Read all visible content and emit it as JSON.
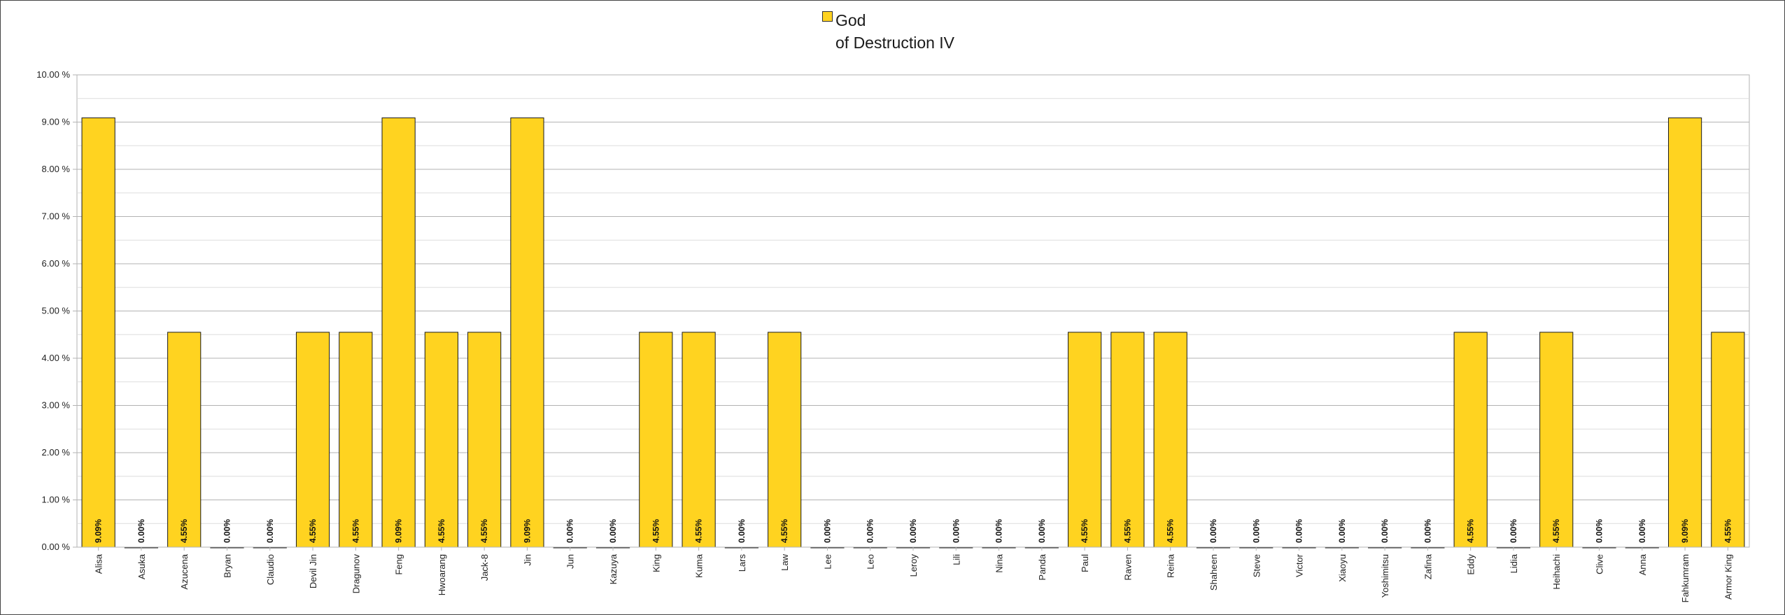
{
  "legend": {
    "series_label": "God\nof Destruction IV",
    "swatch_color": "#ffd320"
  },
  "chart_data": {
    "type": "bar",
    "title": "",
    "xlabel": "",
    "ylabel": "",
    "ylim": [
      0,
      10
    ],
    "y_ticks": [
      "0.00 %",
      "1.00 %",
      "2.00 %",
      "3.00 %",
      "4.00 %",
      "5.00 %",
      "6.00 %",
      "7.00 %",
      "8.00 %",
      "9.00 %",
      "10.00 %"
    ],
    "grid": true,
    "legend_position": "top-center",
    "bar_color": "#ffd320",
    "categories": [
      "Alisa",
      "Asuka",
      "Azucena",
      "Bryan",
      "Claudio",
      "Devil Jin",
      "Dragunov",
      "Feng",
      "Hwoarang",
      "Jack-8",
      "Jin",
      "Jun",
      "Kazuya",
      "King",
      "Kuma",
      "Lars",
      "Law",
      "Lee",
      "Leo",
      "Leroy",
      "Lili",
      "Nina",
      "Panda",
      "Paul",
      "Raven",
      "Reina",
      "Shaheen",
      "Steve",
      "Victor",
      "Xiaoyu",
      "Yoshimitsu",
      "Zafina",
      "Eddy",
      "Lidia",
      "Heihachi",
      "Clive",
      "Anna",
      "Fahkumram",
      "Armor King"
    ],
    "series": [
      {
        "name": "God of Destruction IV",
        "values": [
          9.09,
          0,
          4.55,
          0,
          0,
          4.55,
          4.55,
          9.09,
          4.55,
          4.55,
          9.09,
          0,
          0,
          4.55,
          4.55,
          0,
          4.55,
          0,
          0,
          0,
          0,
          0,
          0,
          4.55,
          4.55,
          4.55,
          0,
          0,
          0,
          0,
          0,
          0,
          4.55,
          0,
          4.55,
          0,
          0,
          9.09,
          4.55
        ],
        "data_labels": [
          "9.09%",
          "0.00%",
          "4.55%",
          "0.00%",
          "0.00%",
          "4.55%",
          "4.55%",
          "9.09%",
          "4.55%",
          "4.55%",
          "9.09%",
          "0.00%",
          "0.00%",
          "4.55%",
          "4.55%",
          "0.00%",
          "4.55%",
          "0.00%",
          "0.00%",
          "0.00%",
          "0.00%",
          "0.00%",
          "0.00%",
          "4.55%",
          "4.55%",
          "4.55%",
          "0.00%",
          "0.00%",
          "0.00%",
          "0.00%",
          "0.00%",
          "0.00%",
          "4.55%",
          "0.00%",
          "4.55%",
          "0.00%",
          "0.00%",
          "9.09%",
          "4.55%"
        ]
      }
    ]
  }
}
